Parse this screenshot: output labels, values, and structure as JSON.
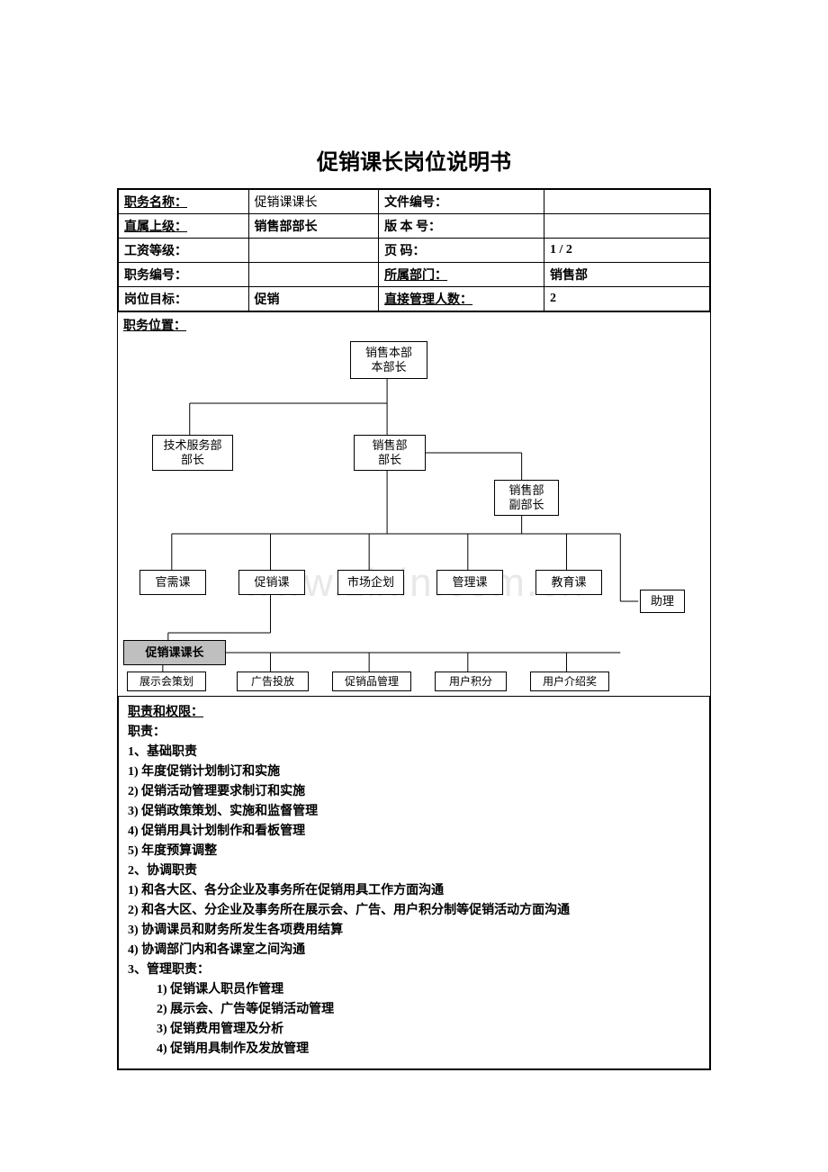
{
  "title": "促销课长岗位说明书",
  "header": {
    "rows": [
      {
        "l1": "职务名称：",
        "v1": "促销课课长",
        "l2": "文件编号：",
        "v2": ""
      },
      {
        "l1": "直属上级：",
        "v1": "销售部部长",
        "l2": "版 本 号：",
        "v2": ""
      },
      {
        "l1": "工资等级：",
        "v1": "",
        "l2": "页    码：",
        "v2": "1 / 2"
      },
      {
        "l1": "职务编号：",
        "v1": "",
        "l2": "所属部门：",
        "v2": "销售部"
      },
      {
        "l1": "岗位目标：",
        "v1": "促销",
        "l2": "直接管理人数：",
        "v2": "2"
      }
    ]
  },
  "position_section_label": "职务位置：",
  "watermark": "www.zixin.com.cn",
  "org": {
    "top": {
      "l1": "销售本部",
      "l2": "本部长"
    },
    "tech": {
      "l1": "技术服务部",
      "l2": "部长"
    },
    "sales": {
      "l1": "销售部",
      "l2": "部长"
    },
    "vice": {
      "l1": "销售部",
      "l2": "副部长"
    },
    "row3": [
      {
        "t": "官需课"
      },
      {
        "t": "促销课"
      },
      {
        "t": "市场企划"
      },
      {
        "t": "管理课"
      },
      {
        "t": "教育课"
      }
    ],
    "assistant": "助理",
    "leader": "促销课课长",
    "row5": [
      {
        "t": "展示会策划"
      },
      {
        "t": "广告投放"
      },
      {
        "t": "促销品管理"
      },
      {
        "t": "用户积分"
      },
      {
        "t": "用户介绍奖"
      }
    ]
  },
  "duties": {
    "section_title": "职责和权限：",
    "subtitle": "职责：",
    "groups": [
      {
        "head": "1、基础职责",
        "items": [
          "1)    年度促销计划制订和实施",
          "2)    促销活动管理要求制订和实施",
          "3)    促销政策策划、实施和监督管理",
          "4)    促销用具计划制作和看板管理",
          "5)    年度预算调整"
        ]
      },
      {
        "head": "2、协调职责",
        "items": [
          "1)    和各大区、各分企业及事务所在促销用具工作方面沟通",
          "2)    和各大区、分企业及事务所在展示会、广告、用户积分制等促销活动方面沟通",
          "3)    协调课员和财务所发生各项费用结算",
          "4)    协调部门内和各课室之间沟通"
        ]
      },
      {
        "head": "3、管理职责：",
        "items_indent": [
          "1)    促销课人职员作管理",
          "2)    展示会、广告等促销活动管理",
          "3)    促销费用管理及分析",
          "4)    促销用具制作及发放管理"
        ]
      }
    ]
  }
}
